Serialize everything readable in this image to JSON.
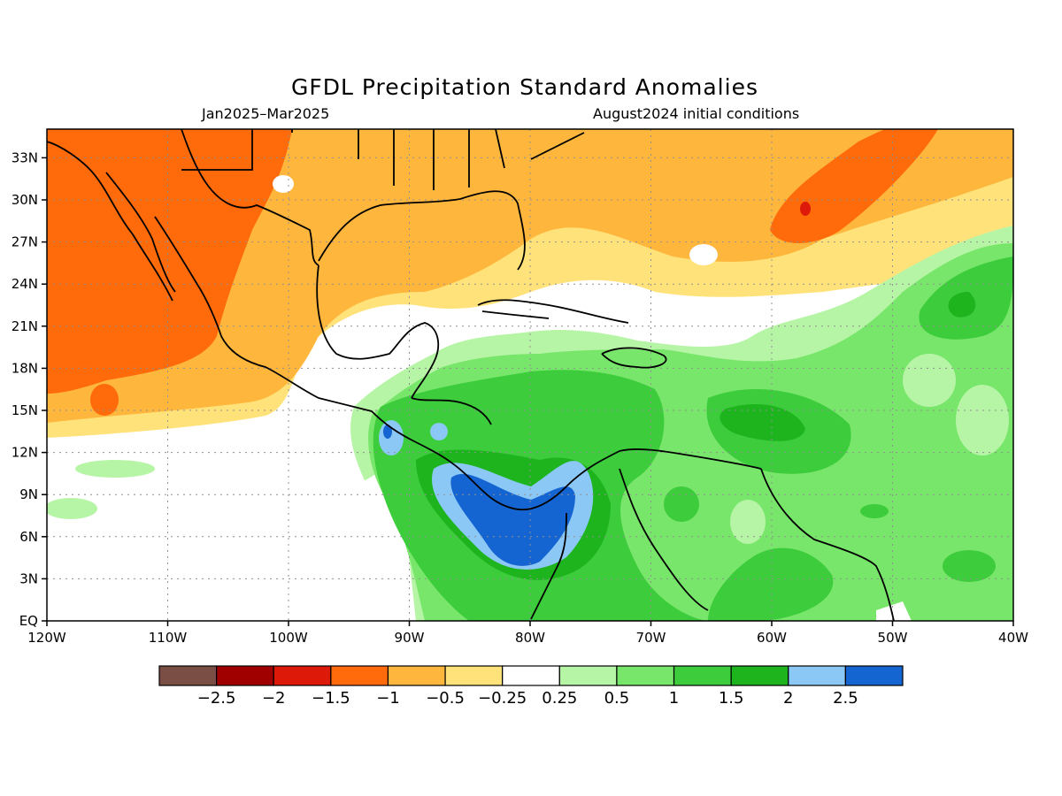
{
  "title": "GFDL Precipitation Standard Anomalies",
  "period": "Jan2025–Mar2025",
  "initial_conditions": "August2024 initial conditions",
  "lon_labels": [
    "120W",
    "110W",
    "100W",
    "90W",
    "80W",
    "70W",
    "60W",
    "50W",
    "40W"
  ],
  "lat_labels": [
    "EQ",
    "3N",
    "6N",
    "9N",
    "12N",
    "15N",
    "18N",
    "21N",
    "24N",
    "27N",
    "30N",
    "33N"
  ],
  "colorbar": {
    "colors": [
      "#7a4e45",
      "#a10000",
      "#dd1a0a",
      "#ff6a0a",
      "#ffb63c",
      "#ffe27a",
      "#ffffff",
      "#b7f5a6",
      "#78e66a",
      "#3ccc3c",
      "#1eb41e",
      "#8cc8f5",
      "#1464d2"
    ],
    "labels": [
      "−2.5",
      "−2",
      "−1.5",
      "−1",
      "−0.5",
      "−0.25",
      "0.25",
      "0.5",
      "1",
      "1.5",
      "2",
      "2.5"
    ]
  }
}
